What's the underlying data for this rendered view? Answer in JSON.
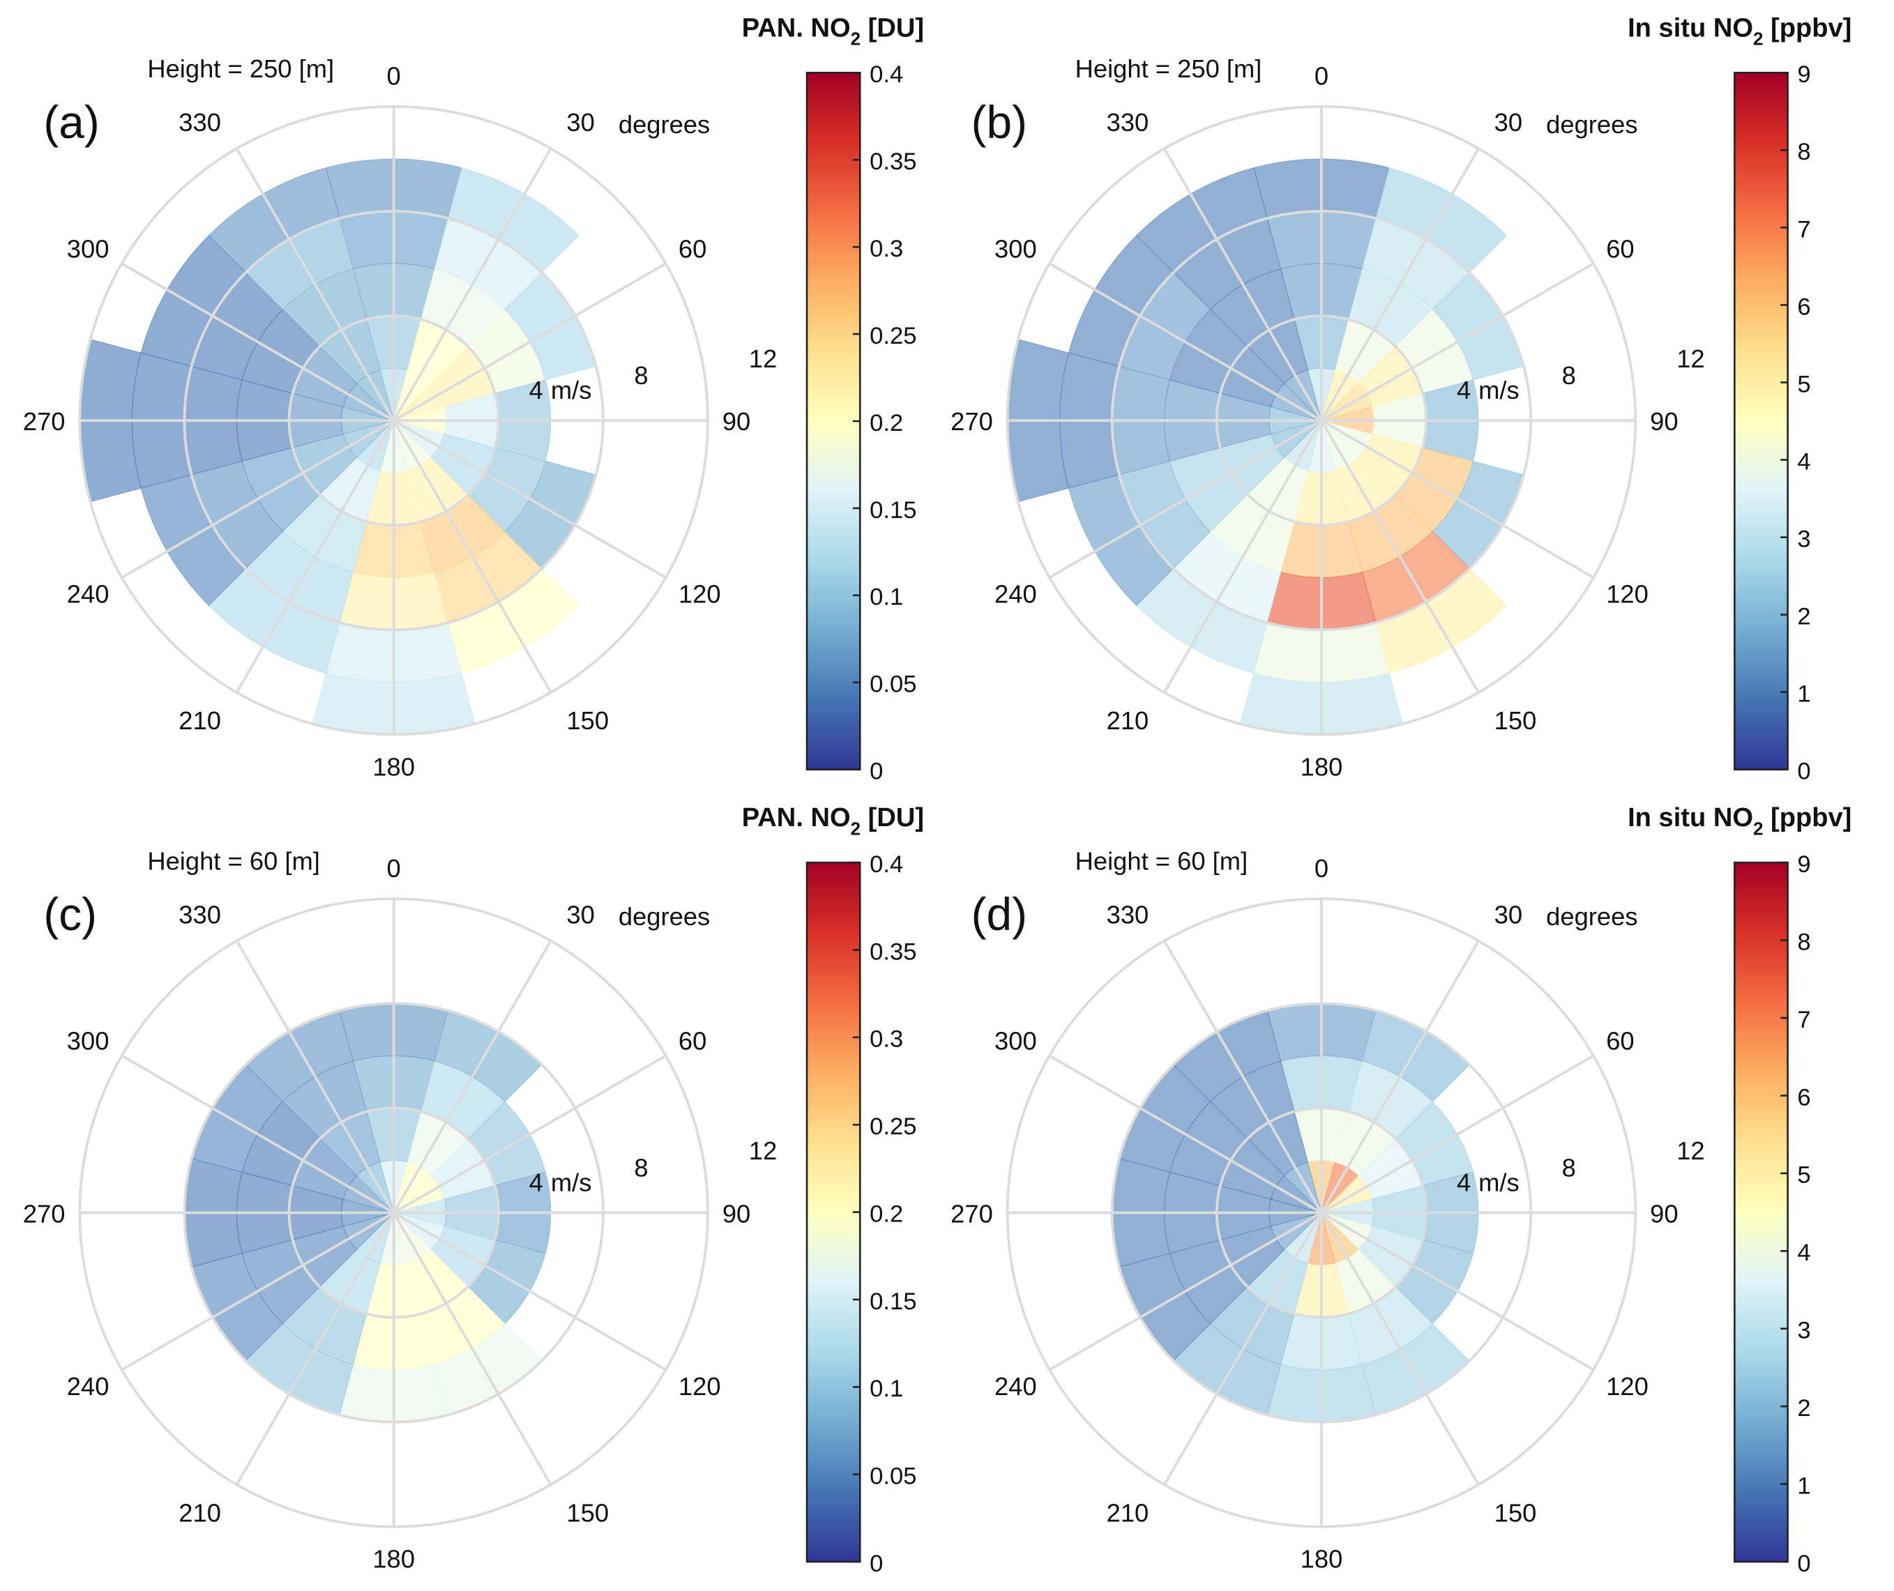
{
  "chart_data": [
    {
      "type": "heatmap",
      "panel_label": "(a)",
      "height_label": "Height = 250 [m]",
      "colorbar": {
        "title_prefix": "PAN. NO",
        "title_sub": "2",
        "title_suffix": " [DU]",
        "range": [
          0,
          0.4
        ],
        "ticks": [
          "0",
          "0.05",
          "0.1",
          "0.15",
          "0.2",
          "0.25",
          "0.3",
          "0.35",
          "0.4"
        ]
      },
      "angle_labels": [
        "0",
        "30",
        "60",
        "90",
        "120",
        "150",
        "180",
        "210",
        "240",
        "270",
        "300",
        "330"
      ],
      "angle_unit": "degrees",
      "speed_labels": [
        "4",
        "8",
        "12"
      ],
      "speed_unit": "m/s",
      "directions_deg": [
        0,
        30,
        60,
        90,
        120,
        150,
        180,
        210,
        240,
        270,
        300,
        330
      ],
      "speed_bins_ms": [
        [
          0,
          2
        ],
        [
          2,
          4
        ],
        [
          4,
          6
        ],
        [
          6,
          8
        ],
        [
          8,
          10
        ],
        [
          10,
          12
        ]
      ],
      "values": [
        [
          0.12,
          0.1,
          0.08,
          0.07,
          0.06,
          null
        ],
        [
          0.2,
          0.2,
          0.17,
          0.15,
          0.12,
          null
        ],
        [
          0.22,
          0.22,
          0.18,
          0.12,
          null,
          null
        ],
        [
          0.2,
          0.15,
          0.1,
          null,
          null,
          null
        ],
        [
          0.15,
          0.12,
          0.1,
          0.08,
          null,
          null
        ],
        [
          0.18,
          0.22,
          0.26,
          0.25,
          0.2,
          null
        ],
        [
          0.17,
          0.22,
          0.25,
          0.22,
          0.15,
          0.14
        ],
        [
          0.12,
          0.15,
          0.13,
          0.12,
          0.12,
          null
        ],
        [
          0.09,
          0.08,
          0.07,
          0.06,
          0.05,
          null
        ],
        [
          0.08,
          0.06,
          0.04,
          0.04,
          0.04,
          0.04
        ],
        [
          0.07,
          0.06,
          0.04,
          0.04,
          0.04,
          null
        ],
        [
          0.08,
          0.08,
          0.08,
          0.09,
          0.06,
          null
        ]
      ]
    },
    {
      "type": "heatmap",
      "panel_label": "(b)",
      "height_label": "Height = 250 [m]",
      "colorbar": {
        "title_prefix": "In situ NO",
        "title_sub": "2",
        "title_suffix": " [ppbv]",
        "range": [
          0,
          9
        ],
        "ticks": [
          "0",
          "1",
          "2",
          "3",
          "4",
          "5",
          "6",
          "7",
          "8",
          "9"
        ]
      },
      "angle_labels": [
        "0",
        "30",
        "60",
        "90",
        "120",
        "150",
        "180",
        "210",
        "240",
        "270",
        "300",
        "330"
      ],
      "angle_unit": "degrees",
      "speed_labels": [
        "4",
        "8",
        "12"
      ],
      "speed_unit": "m/s",
      "directions_deg": [
        0,
        30,
        60,
        90,
        120,
        150,
        180,
        210,
        240,
        270,
        300,
        330
      ],
      "speed_bins_ms": [
        [
          0,
          2
        ],
        [
          2,
          4
        ],
        [
          4,
          6
        ],
        [
          6,
          8
        ],
        [
          8,
          10
        ],
        [
          10,
          12
        ]
      ],
      "values": [
        [
          3,
          2,
          1.5,
          1.5,
          1,
          null
        ],
        [
          5,
          4,
          3,
          3,
          2.5,
          null
        ],
        [
          5.5,
          5,
          4,
          2.5,
          null,
          null
        ],
        [
          6,
          4,
          2,
          null,
          null,
          null
        ],
        [
          4,
          5,
          6,
          2,
          null,
          null
        ],
        [
          4,
          5,
          6,
          7,
          5,
          null
        ],
        [
          3.5,
          5,
          6,
          7.5,
          4,
          3
        ],
        [
          3,
          4,
          4,
          3.5,
          3,
          null
        ],
        [
          2,
          2.5,
          2.5,
          2,
          1.5,
          null
        ],
        [
          2,
          1.5,
          1.5,
          1.5,
          1,
          1
        ],
        [
          1.5,
          1,
          1,
          1.5,
          1,
          null
        ],
        [
          1.5,
          1,
          1,
          1,
          1,
          null
        ]
      ]
    },
    {
      "type": "heatmap",
      "panel_label": "(c)",
      "height_label": "Height = 60 [m]",
      "colorbar": {
        "title_prefix": "PAN. NO",
        "title_sub": "2",
        "title_suffix": " [DU]",
        "range": [
          0,
          0.4
        ],
        "ticks": [
          "0",
          "0.05",
          "0.1",
          "0.15",
          "0.2",
          "0.25",
          "0.3",
          "0.35",
          "0.4"
        ]
      },
      "angle_labels": [
        "0",
        "30",
        "60",
        "90",
        "120",
        "150",
        "180",
        "210",
        "240",
        "270",
        "300",
        "330"
      ],
      "angle_unit": "degrees",
      "speed_labels": [
        "4",
        "8",
        "12"
      ],
      "speed_unit": "m/s",
      "directions_deg": [
        0,
        30,
        60,
        90,
        120,
        150,
        180,
        210,
        240,
        270,
        300,
        330
      ],
      "speed_bins_ms": [
        [
          0,
          2
        ],
        [
          2,
          4
        ],
        [
          4,
          6
        ],
        [
          6,
          8
        ],
        [
          8,
          10
        ],
        [
          10,
          12
        ]
      ],
      "values": [
        [
          0.15,
          0.1,
          0.08,
          0.06,
          null,
          null
        ],
        [
          0.2,
          0.17,
          0.12,
          0.08,
          null,
          null
        ],
        [
          0.2,
          0.15,
          0.1,
          null,
          null,
          null
        ],
        [
          0.13,
          0.1,
          0.07,
          null,
          null,
          null
        ],
        [
          0.15,
          0.12,
          0.08,
          null,
          null,
          null
        ],
        [
          0.18,
          0.2,
          0.2,
          0.17,
          null,
          null
        ],
        [
          0.17,
          0.2,
          0.2,
          0.17,
          null,
          null
        ],
        [
          0.12,
          0.12,
          0.1,
          0.1,
          null,
          null
        ],
        [
          0.06,
          0.05,
          0.05,
          0.05,
          null,
          null
        ],
        [
          0.05,
          0.04,
          0.04,
          0.04,
          null,
          null
        ],
        [
          0.06,
          0.05,
          0.04,
          0.05,
          null,
          null
        ],
        [
          0.09,
          0.07,
          0.06,
          0.06,
          null,
          null
        ]
      ]
    },
    {
      "type": "heatmap",
      "panel_label": "(d)",
      "height_label": "Height = 60 [m]",
      "colorbar": {
        "title_prefix": "In situ NO",
        "title_sub": "2",
        "title_suffix": " [ppbv]",
        "range": [
          0,
          9
        ],
        "ticks": [
          "0",
          "1",
          "2",
          "3",
          "4",
          "5",
          "6",
          "7",
          "8",
          "9"
        ]
      },
      "angle_labels": [
        "0",
        "30",
        "60",
        "90",
        "120",
        "150",
        "180",
        "210",
        "240",
        "270",
        "300",
        "330"
      ],
      "angle_unit": "degrees",
      "speed_labels": [
        "4",
        "8",
        "12"
      ],
      "speed_unit": "m/s",
      "directions_deg": [
        0,
        30,
        60,
        90,
        120,
        150,
        180,
        210,
        240,
        270,
        300,
        330
      ],
      "speed_bins_ms": [
        [
          0,
          2
        ],
        [
          2,
          4
        ],
        [
          4,
          6
        ],
        [
          6,
          8
        ],
        [
          8,
          10
        ],
        [
          10,
          12
        ]
      ],
      "values": [
        [
          6,
          4,
          2.5,
          1.5,
          null,
          null
        ],
        [
          7,
          4,
          3,
          2,
          null,
          null
        ],
        [
          5,
          3.5,
          2.5,
          null,
          null,
          null
        ],
        [
          3,
          2.5,
          2,
          null,
          null,
          null
        ],
        [
          4,
          3,
          2,
          null,
          null,
          null
        ],
        [
          6,
          4,
          3,
          2.5,
          null,
          null
        ],
        [
          6.5,
          5,
          3,
          2.5,
          null,
          null
        ],
        [
          3,
          2.5,
          2,
          2,
          null,
          null
        ],
        [
          1.5,
          1,
          1,
          1,
          null,
          null
        ],
        [
          1,
          1,
          1,
          1,
          null,
          null
        ],
        [
          1,
          1,
          1,
          1,
          null,
          null
        ],
        [
          1.5,
          1,
          1,
          1,
          null,
          null
        ]
      ]
    }
  ],
  "colormap": [
    "#313695",
    "#4575b4",
    "#74add1",
    "#abd9e9",
    "#e0f3f8",
    "#ffffbf",
    "#fee090",
    "#fdae61",
    "#f46d43",
    "#d73027",
    "#a50026"
  ],
  "grid_color": "#dcdcdc"
}
